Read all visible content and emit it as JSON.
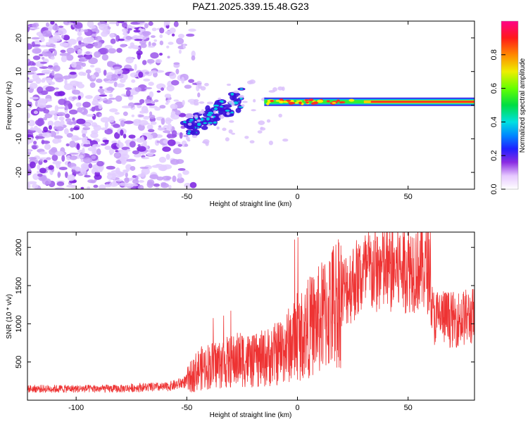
{
  "page": {
    "title": "PAZ1.2025.339.15.48.G23"
  },
  "chart_data": [
    {
      "type": "heatmap",
      "title": "PAZ1.2025.339.15.48.G23",
      "xlabel": "Height of straight line (km)",
      "ylabel": "Frequency (Hz)",
      "xlim": [
        -122,
        80
      ],
      "ylim": [
        -25,
        25
      ],
      "xticks": [
        -100,
        -50,
        0,
        50
      ],
      "yticks": [
        -20,
        -10,
        0,
        10,
        20
      ],
      "colorbar": {
        "label": "Normalized spectral amplitude",
        "range": [
          0,
          1
        ],
        "ticks": [
          0.0,
          0.2,
          0.4,
          0.6,
          0.8
        ],
        "tick_labels": [
          "0.0",
          "0.2",
          "0.4",
          "0.6",
          "0.8"
        ]
      },
      "features": [
        {
          "name": "scattered noise",
          "x_range": [
            -122,
            -50
          ],
          "freq_range": [
            -25,
            25
          ],
          "amplitude": 0.1
        },
        {
          "name": "transition blobs",
          "x_range": [
            -52,
            -25
          ],
          "freq_range": [
            -11,
            4
          ],
          "amplitude": 0.3
        },
        {
          "name": "carrier line",
          "x_range": [
            -15,
            80
          ],
          "freq_hz": 1,
          "amplitude": 0.85
        }
      ]
    },
    {
      "type": "line",
      "title": "",
      "xlabel": "Height of straight line (km)",
      "ylabel": "SNR (10 * v/v)",
      "xlim": [
        -122,
        80
      ],
      "ylim": [
        0,
        2200
      ],
      "xticks": [
        -100,
        -50,
        0,
        50
      ],
      "yticks": [
        500,
        1000,
        1500,
        2000
      ],
      "series": [
        {
          "name": "SNR",
          "color": "#ee3333",
          "x": [
            -122,
            -110,
            -100,
            -90,
            -80,
            -70,
            -60,
            -55,
            -50,
            -45,
            -40,
            -35,
            -30,
            -25,
            -20,
            -15,
            -10,
            -5,
            0,
            5,
            10,
            15,
            20,
            25,
            30,
            35,
            40,
            45,
            50,
            55,
            60,
            61,
            62,
            65,
            70,
            75,
            80
          ],
          "values": [
            150,
            150,
            150,
            150,
            150,
            170,
            170,
            200,
            250,
            400,
            450,
            480,
            500,
            550,
            500,
            550,
            600,
            700,
            800,
            950,
            1050,
            1200,
            1400,
            1550,
            1650,
            1700,
            1700,
            1720,
            1750,
            1750,
            1720,
            1100,
            1080,
            1100,
            1050,
            1080,
            1100
          ]
        }
      ]
    }
  ]
}
